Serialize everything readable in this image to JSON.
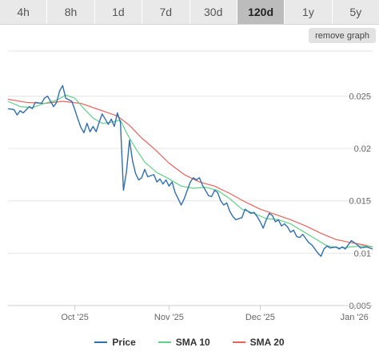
{
  "tabs": [
    {
      "label": "4h",
      "active": false
    },
    {
      "label": "8h",
      "active": false
    },
    {
      "label": "1d",
      "active": false
    },
    {
      "label": "7d",
      "active": false
    },
    {
      "label": "30d",
      "active": false
    },
    {
      "label": "120d",
      "active": true
    },
    {
      "label": "1y",
      "active": false
    },
    {
      "label": "5y",
      "active": false
    }
  ],
  "remove_graph_label": "remove graph",
  "chart_data": {
    "type": "line",
    "x_range": [
      "2025-09-09",
      "2026-01-07"
    ],
    "ylim": [
      0.005,
      0.0293
    ],
    "yticks": [
      {
        "value": 0.025,
        "label": "0.025"
      },
      {
        "value": 0.02,
        "label": "0.02"
      },
      {
        "value": 0.015,
        "label": "0.015"
      },
      {
        "value": 0.01,
        "label": "0.01"
      },
      {
        "value": 0.005,
        "label": "0.005"
      }
    ],
    "xticks": [
      {
        "date": "2025-10-01",
        "label": "Oct '25"
      },
      {
        "date": "2025-11-01",
        "label": "Nov '25"
      },
      {
        "date": "2025-12-01",
        "label": "Dec '25"
      },
      {
        "date": "2026-01-01",
        "label": "Jan '26"
      }
    ],
    "grid": true,
    "legend_position": "bottom",
    "series": [
      {
        "name": "Price",
        "color": "#2f6fad",
        "points": [
          [
            "2025-09-09",
            0.0238
          ],
          [
            "2025-09-11",
            0.0237
          ],
          [
            "2025-09-12",
            0.0232
          ],
          [
            "2025-09-13",
            0.0236
          ],
          [
            "2025-09-14",
            0.0234
          ],
          [
            "2025-09-16",
            0.024
          ],
          [
            "2025-09-17",
            0.0238
          ],
          [
            "2025-09-18",
            0.0244
          ],
          [
            "2025-09-20",
            0.0243
          ],
          [
            "2025-09-21",
            0.0248
          ],
          [
            "2025-09-22",
            0.025
          ],
          [
            "2025-09-24",
            0.024
          ],
          [
            "2025-09-25",
            0.0244
          ],
          [
            "2025-09-26",
            0.0255
          ],
          [
            "2025-09-27",
            0.026
          ],
          [
            "2025-09-28",
            0.0248
          ],
          [
            "2025-09-30",
            0.0245
          ],
          [
            "2025-10-01",
            0.0237
          ],
          [
            "2025-10-02",
            0.0228
          ],
          [
            "2025-10-03",
            0.022
          ],
          [
            "2025-10-04",
            0.0215
          ],
          [
            "2025-10-05",
            0.0224
          ],
          [
            "2025-10-06",
            0.0216
          ],
          [
            "2025-10-07",
            0.0221
          ],
          [
            "2025-10-08",
            0.0216
          ],
          [
            "2025-10-09",
            0.0225
          ],
          [
            "2025-10-10",
            0.0233
          ],
          [
            "2025-10-11",
            0.0228
          ],
          [
            "2025-10-12",
            0.0223
          ],
          [
            "2025-10-13",
            0.0228
          ],
          [
            "2025-10-14",
            0.0221
          ],
          [
            "2025-10-15",
            0.0234
          ],
          [
            "2025-10-16",
            0.0225
          ],
          [
            "2025-10-17",
            0.016
          ],
          [
            "2025-10-18",
            0.0178
          ],
          [
            "2025-10-19",
            0.0208
          ],
          [
            "2025-10-20",
            0.0188
          ],
          [
            "2025-10-21",
            0.0176
          ],
          [
            "2025-10-22",
            0.017
          ],
          [
            "2025-10-23",
            0.0172
          ],
          [
            "2025-10-24",
            0.018
          ],
          [
            "2025-10-25",
            0.0173
          ],
          [
            "2025-10-27",
            0.0175
          ],
          [
            "2025-10-28",
            0.0168
          ],
          [
            "2025-10-29",
            0.0171
          ],
          [
            "2025-10-30",
            0.0166
          ],
          [
            "2025-10-31",
            0.017
          ],
          [
            "2025-11-01",
            0.0164
          ],
          [
            "2025-11-02",
            0.0168
          ],
          [
            "2025-11-03",
            0.0158
          ],
          [
            "2025-11-04",
            0.0152
          ],
          [
            "2025-11-05",
            0.0146
          ],
          [
            "2025-11-06",
            0.0152
          ],
          [
            "2025-11-07",
            0.016
          ],
          [
            "2025-11-08",
            0.0168
          ],
          [
            "2025-11-09",
            0.0172
          ],
          [
            "2025-11-10",
            0.017
          ],
          [
            "2025-11-11",
            0.0172
          ],
          [
            "2025-11-12",
            0.0165
          ],
          [
            "2025-11-13",
            0.016
          ],
          [
            "2025-11-14",
            0.0155
          ],
          [
            "2025-11-15",
            0.0154
          ],
          [
            "2025-11-16",
            0.016
          ],
          [
            "2025-11-17",
            0.0158
          ],
          [
            "2025-11-18",
            0.015
          ],
          [
            "2025-11-19",
            0.0146
          ],
          [
            "2025-11-20",
            0.0148
          ],
          [
            "2025-11-21",
            0.014
          ],
          [
            "2025-11-22",
            0.0135
          ],
          [
            "2025-11-23",
            0.0132
          ],
          [
            "2025-11-25",
            0.0134
          ],
          [
            "2025-11-26",
            0.0142
          ],
          [
            "2025-11-27",
            0.014
          ],
          [
            "2025-11-28",
            0.0138
          ],
          [
            "2025-11-29",
            0.0139
          ],
          [
            "2025-11-30",
            0.0135
          ],
          [
            "2025-12-01",
            0.013
          ],
          [
            "2025-12-02",
            0.0124
          ],
          [
            "2025-12-03",
            0.0132
          ],
          [
            "2025-12-04",
            0.0138
          ],
          [
            "2025-12-05",
            0.0136
          ],
          [
            "2025-12-06",
            0.013
          ],
          [
            "2025-12-07",
            0.0132
          ],
          [
            "2025-12-08",
            0.0126
          ],
          [
            "2025-12-09",
            0.0128
          ],
          [
            "2025-12-10",
            0.0125
          ],
          [
            "2025-12-11",
            0.012
          ],
          [
            "2025-12-12",
            0.0122
          ],
          [
            "2025-12-13",
            0.0116
          ],
          [
            "2025-12-14",
            0.0115
          ],
          [
            "2025-12-15",
            0.0118
          ],
          [
            "2025-12-16",
            0.0114
          ],
          [
            "2025-12-17",
            0.011
          ],
          [
            "2025-12-18",
            0.0108
          ],
          [
            "2025-12-19",
            0.0104
          ],
          [
            "2025-12-20",
            0.01
          ],
          [
            "2025-12-21",
            0.0097
          ],
          [
            "2025-12-22",
            0.0104
          ],
          [
            "2025-12-23",
            0.0107
          ],
          [
            "2025-12-24",
            0.0105
          ],
          [
            "2025-12-26",
            0.0106
          ],
          [
            "2025-12-27",
            0.0104
          ],
          [
            "2025-12-28",
            0.0106
          ],
          [
            "2025-12-29",
            0.0104
          ],
          [
            "2025-12-30",
            0.0108
          ],
          [
            "2025-12-31",
            0.0112
          ],
          [
            "2026-01-01",
            0.011
          ],
          [
            "2026-01-02",
            0.0108
          ],
          [
            "2026-01-03",
            0.0105
          ],
          [
            "2026-01-05",
            0.0106
          ],
          [
            "2026-01-07",
            0.0104
          ]
        ]
      },
      {
        "name": "SMA 10",
        "color": "#5fd08a",
        "points": [
          [
            "2025-09-09",
            0.0245
          ],
          [
            "2025-09-13",
            0.024
          ],
          [
            "2025-09-17",
            0.0239
          ],
          [
            "2025-09-21",
            0.0243
          ],
          [
            "2025-09-25",
            0.0246
          ],
          [
            "2025-09-28",
            0.0251
          ],
          [
            "2025-10-01",
            0.0248
          ],
          [
            "2025-10-04",
            0.0238
          ],
          [
            "2025-10-07",
            0.0229
          ],
          [
            "2025-10-10",
            0.0224
          ],
          [
            "2025-10-13",
            0.0225
          ],
          [
            "2025-10-16",
            0.0227
          ],
          [
            "2025-10-18",
            0.0215
          ],
          [
            "2025-10-21",
            0.02
          ],
          [
            "2025-10-24",
            0.0187
          ],
          [
            "2025-10-28",
            0.0177
          ],
          [
            "2025-11-01",
            0.0171
          ],
          [
            "2025-11-05",
            0.0164
          ],
          [
            "2025-11-09",
            0.0162
          ],
          [
            "2025-11-13",
            0.0163
          ],
          [
            "2025-11-17",
            0.016
          ],
          [
            "2025-11-21",
            0.0152
          ],
          [
            "2025-11-25",
            0.0142
          ],
          [
            "2025-11-29",
            0.0138
          ],
          [
            "2025-12-03",
            0.0133
          ],
          [
            "2025-12-07",
            0.0132
          ],
          [
            "2025-12-11",
            0.0128
          ],
          [
            "2025-12-15",
            0.0121
          ],
          [
            "2025-12-19",
            0.0114
          ],
          [
            "2025-12-23",
            0.0107
          ],
          [
            "2025-12-27",
            0.0105
          ],
          [
            "2025-12-31",
            0.0106
          ],
          [
            "2026-01-04",
            0.0107
          ],
          [
            "2026-01-07",
            0.0106
          ]
        ]
      },
      {
        "name": "SMA 20",
        "color": "#e8645a",
        "points": [
          [
            "2025-09-09",
            0.0247
          ],
          [
            "2025-09-15",
            0.0244
          ],
          [
            "2025-09-21",
            0.0243
          ],
          [
            "2025-09-27",
            0.0245
          ],
          [
            "2025-10-03",
            0.0243
          ],
          [
            "2025-10-09",
            0.0237
          ],
          [
            "2025-10-15",
            0.0231
          ],
          [
            "2025-10-19",
            0.0222
          ],
          [
            "2025-10-23",
            0.021
          ],
          [
            "2025-10-27",
            0.02
          ],
          [
            "2025-11-01",
            0.0186
          ],
          [
            "2025-11-06",
            0.0175
          ],
          [
            "2025-11-11",
            0.0168
          ],
          [
            "2025-11-16",
            0.0164
          ],
          [
            "2025-11-21",
            0.0157
          ],
          [
            "2025-11-26",
            0.0149
          ],
          [
            "2025-12-01",
            0.0142
          ],
          [
            "2025-12-06",
            0.0137
          ],
          [
            "2025-12-11",
            0.0132
          ],
          [
            "2025-12-16",
            0.0126
          ],
          [
            "2025-12-21",
            0.0119
          ],
          [
            "2025-12-26",
            0.0113
          ],
          [
            "2025-12-31",
            0.011
          ],
          [
            "2026-01-04",
            0.0108
          ],
          [
            "2026-01-07",
            0.0106
          ]
        ]
      }
    ]
  }
}
